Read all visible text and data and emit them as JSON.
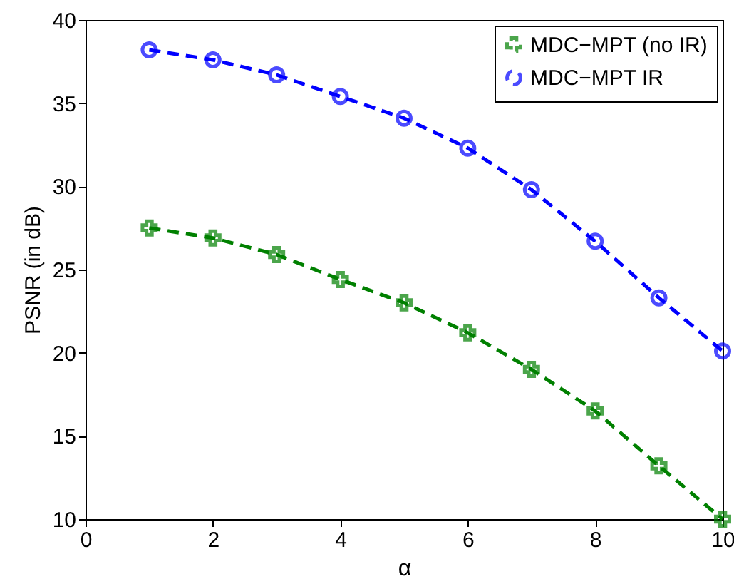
{
  "chart_data": {
    "type": "line",
    "xlabel": "α",
    "ylabel": "PSNR (in dB)",
    "x": [
      1,
      2,
      3,
      4,
      5,
      6,
      7,
      8,
      9,
      10
    ],
    "series": [
      {
        "name": "MDC−MPT (no IR)",
        "color": "#008000",
        "marker": "cross",
        "line_style": "dashed",
        "values": [
          27.5,
          26.9,
          25.9,
          24.4,
          23.0,
          21.2,
          19.0,
          16.5,
          13.2,
          10.0
        ]
      },
      {
        "name": "MDC−MPT IR",
        "color": "#0000ff",
        "marker": "circle",
        "line_style": "dashed",
        "values": [
          38.2,
          37.6,
          36.7,
          35.4,
          34.1,
          32.3,
          29.8,
          26.7,
          23.3,
          20.1
        ]
      }
    ],
    "xlim": [
      0,
      10
    ],
    "xticks": [
      0,
      2,
      4,
      6,
      8,
      10
    ],
    "ylim": [
      10,
      40
    ],
    "yticks": [
      10,
      15,
      20,
      25,
      30,
      35,
      40
    ],
    "grid": false,
    "legend": "top right"
  }
}
